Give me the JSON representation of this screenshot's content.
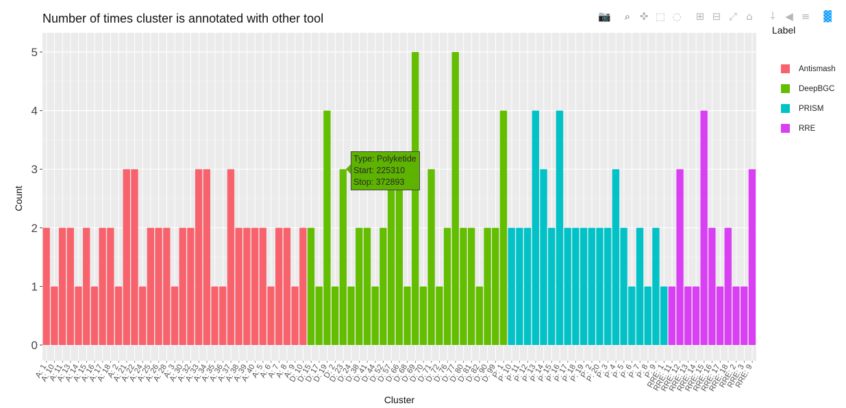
{
  "chart_data": {
    "type": "bar",
    "title": "Number of times cluster is annotated with other tool",
    "xlabel": "Cluster",
    "ylabel": "Count",
    "ylim": [
      0,
      5
    ],
    "y_ticks": [
      "0",
      "1",
      "2",
      "3",
      "4",
      "5"
    ],
    "grid": true,
    "legend_title": "Label",
    "legend_position": "right",
    "series": [
      {
        "name": "Antismash",
        "color": "#f8626c",
        "categories": [
          "A: 1",
          "A: 10",
          "A: 11",
          "A: 13",
          "A: 14",
          "A: 15",
          "A: 16",
          "A: 17",
          "A: 18",
          "A: 2",
          "A: 21",
          "A: 22",
          "A: 24",
          "A: 25",
          "A: 26",
          "A: 28",
          "A: 3",
          "A: 30",
          "A: 32",
          "A: 33",
          "A: 34",
          "A: 35",
          "A: 36",
          "A: 37",
          "A: 38",
          "A: 39",
          "A: 40",
          "A: 5",
          "A: 6",
          "A: 7",
          "A: 8",
          "A: 9"
        ],
        "values": [
          2,
          1,
          2,
          2,
          1,
          2,
          1,
          2,
          2,
          1,
          3,
          3,
          1,
          2,
          2,
          2,
          1,
          2,
          2,
          3,
          3,
          1,
          1,
          3,
          2,
          2,
          2,
          2,
          1,
          2,
          2,
          1
        ]
      },
      {
        "name": "DeepBGC",
        "color": "#63bd00",
        "categories": [
          "A: 9",
          "D: 10",
          "D: 15",
          "D: 17",
          "D: 19",
          "D: 2",
          "D: 23",
          "D: 24",
          "D: 38",
          "D: 41",
          "D: 44",
          "D: 52",
          "D: 57",
          "D: 66",
          "D: 68",
          "D: 69",
          "D: 70",
          "D: 71",
          "D: 72",
          "D: 76",
          "D: 77",
          "D: 80",
          "D: 81",
          "D: 82",
          "D: 90",
          "D: 99"
        ],
        "values": [
          2,
          2,
          1,
          4,
          1,
          3,
          1,
          2,
          2,
          1,
          2,
          3,
          3,
          1,
          5,
          1,
          3,
          1,
          2,
          5,
          2,
          2,
          1,
          2,
          2,
          4
        ]
      },
      {
        "name": "PRISM",
        "color": "#00c2c7",
        "categories": [
          "P: 1",
          "P: 10",
          "P: 11",
          "P: 12",
          "P: 13",
          "P: 14",
          "P: 15",
          "P: 16",
          "P: 17",
          "P: 18",
          "P: 19",
          "P: 2",
          "P: 20",
          "P: 3",
          "P: 4",
          "P: 5",
          "P: 6",
          "P: 7",
          "P: 8",
          "P: 9"
        ],
        "values": [
          2,
          2,
          2,
          4,
          3,
          2,
          4,
          2,
          2,
          2,
          2,
          2,
          2,
          3,
          2,
          1,
          2,
          1,
          2,
          1
        ]
      },
      {
        "name": "RRE",
        "color": "#d93ff3",
        "categories": [
          "RRE: 1",
          "RRE: 11",
          "RRE: 12",
          "RRE: 13",
          "RRE: 14",
          "RRE: 15",
          "RRE: 16",
          "RRE: 17",
          "RRE: 18",
          "RRE: 2",
          "RRE: 3",
          "RRE: 9"
        ],
        "values": [
          1,
          3,
          1,
          1,
          4,
          2,
          1,
          2,
          1,
          1,
          3,
          1
        ]
      }
    ],
    "x_tick_labels": [
      "A: 1",
      "A: 10",
      "A: 11",
      "A: 13",
      "A: 14",
      "A: 15",
      "A: 16",
      "A: 17",
      "A: 18",
      "A: 2",
      "A: 21",
      "A: 22",
      "A: 24",
      "A: 25",
      "A: 26",
      "A: 28",
      "A: 3",
      "A: 30",
      "A: 32",
      "A: 33",
      "A: 34",
      "A: 35",
      "A: 36",
      "A: 37",
      "A: 38",
      "A: 39",
      "A: 40",
      "A: 5",
      "A: 6",
      "A: 7",
      "A: 8",
      "A: 9",
      "D: 10",
      "D: 15",
      "D: 17",
      "D: 19",
      "D: 2",
      "D: 23",
      "D: 24",
      "D: 38",
      "D: 41",
      "D: 44",
      "D: 52",
      "D: 57",
      "D: 66",
      "D: 68",
      "D: 69",
      "D: 70",
      "D: 71",
      "D: 72",
      "D: 76",
      "D: 77",
      "D: 80",
      "D: 81",
      "D: 82",
      "D: 90",
      "D: 99",
      "P: 1",
      "P: 10",
      "P: 11",
      "P: 12",
      "P: 13",
      "P: 14",
      "P: 15",
      "P: 16",
      "P: 17",
      "P: 18",
      "P: 19",
      "P: 2",
      "P: 20",
      "P: 3",
      "P: 4",
      "P: 5",
      "P: 6",
      "P: 7",
      "P: 8",
      "P: 9",
      "RRE: 1",
      "RRE: 11",
      "RRE: 12",
      "RRE: 13",
      "RRE: 14",
      "RRE: 15",
      "RRE: 16",
      "RRE: 17",
      "RRE: 18",
      "RRE: 2",
      "RRE: 3",
      "RRE: 9"
    ],
    "bars": [
      {
        "label": "Antismash",
        "value": 2
      },
      {
        "label": "Antismash",
        "value": 1
      },
      {
        "label": "Antismash",
        "value": 2
      },
      {
        "label": "Antismash",
        "value": 2
      },
      {
        "label": "Antismash",
        "value": 1
      },
      {
        "label": "Antismash",
        "value": 2
      },
      {
        "label": "Antismash",
        "value": 1
      },
      {
        "label": "Antismash",
        "value": 2
      },
      {
        "label": "Antismash",
        "value": 2
      },
      {
        "label": "Antismash",
        "value": 1
      },
      {
        "label": "Antismash",
        "value": 3
      },
      {
        "label": "Antismash",
        "value": 3
      },
      {
        "label": "Antismash",
        "value": 1
      },
      {
        "label": "Antismash",
        "value": 2
      },
      {
        "label": "Antismash",
        "value": 2
      },
      {
        "label": "Antismash",
        "value": 2
      },
      {
        "label": "Antismash",
        "value": 1
      },
      {
        "label": "Antismash",
        "value": 2
      },
      {
        "label": "Antismash",
        "value": 2
      },
      {
        "label": "Antismash",
        "value": 3
      },
      {
        "label": "Antismash",
        "value": 3
      },
      {
        "label": "Antismash",
        "value": 1
      },
      {
        "label": "Antismash",
        "value": 1
      },
      {
        "label": "Antismash",
        "value": 3
      },
      {
        "label": "Antismash",
        "value": 2
      },
      {
        "label": "Antismash",
        "value": 2
      },
      {
        "label": "Antismash",
        "value": 2
      },
      {
        "label": "Antismash",
        "value": 2
      },
      {
        "label": "Antismash",
        "value": 1
      },
      {
        "label": "Antismash",
        "value": 2
      },
      {
        "label": "Antismash",
        "value": 2
      },
      {
        "label": "Antismash",
        "value": 1
      },
      {
        "label": "Antismash",
        "value": 2
      },
      {
        "label": "DeepBGC",
        "value": 2
      },
      {
        "label": "DeepBGC",
        "value": 1
      },
      {
        "label": "DeepBGC",
        "value": 4
      },
      {
        "label": "DeepBGC",
        "value": 1
      },
      {
        "label": "DeepBGC",
        "value": 3
      },
      {
        "label": "DeepBGC",
        "value": 1
      },
      {
        "label": "DeepBGC",
        "value": 2
      },
      {
        "label": "DeepBGC",
        "value": 2
      },
      {
        "label": "DeepBGC",
        "value": 1
      },
      {
        "label": "DeepBGC",
        "value": 2
      },
      {
        "label": "DeepBGC",
        "value": 3
      },
      {
        "label": "DeepBGC",
        "value": 3
      },
      {
        "label": "DeepBGC",
        "value": 1
      },
      {
        "label": "DeepBGC",
        "value": 5
      },
      {
        "label": "DeepBGC",
        "value": 1
      },
      {
        "label": "DeepBGC",
        "value": 3
      },
      {
        "label": "DeepBGC",
        "value": 1
      },
      {
        "label": "DeepBGC",
        "value": 2
      },
      {
        "label": "DeepBGC",
        "value": 5
      },
      {
        "label": "DeepBGC",
        "value": 2
      },
      {
        "label": "DeepBGC",
        "value": 2
      },
      {
        "label": "DeepBGC",
        "value": 1
      },
      {
        "label": "DeepBGC",
        "value": 2
      },
      {
        "label": "DeepBGC",
        "value": 2
      },
      {
        "label": "DeepBGC",
        "value": 4
      },
      {
        "label": "PRISM",
        "value": 2
      },
      {
        "label": "PRISM",
        "value": 2
      },
      {
        "label": "PRISM",
        "value": 2
      },
      {
        "label": "PRISM",
        "value": 4
      },
      {
        "label": "PRISM",
        "value": 3
      },
      {
        "label": "PRISM",
        "value": 2
      },
      {
        "label": "PRISM",
        "value": 4
      },
      {
        "label": "PRISM",
        "value": 2
      },
      {
        "label": "PRISM",
        "value": 2
      },
      {
        "label": "PRISM",
        "value": 2
      },
      {
        "label": "PRISM",
        "value": 2
      },
      {
        "label": "PRISM",
        "value": 2
      },
      {
        "label": "PRISM",
        "value": 2
      },
      {
        "label": "PRISM",
        "value": 3
      },
      {
        "label": "PRISM",
        "value": 2
      },
      {
        "label": "PRISM",
        "value": 1
      },
      {
        "label": "PRISM",
        "value": 2
      },
      {
        "label": "PRISM",
        "value": 1
      },
      {
        "label": "PRISM",
        "value": 2
      },
      {
        "label": "PRISM",
        "value": 1
      },
      {
        "label": "RRE",
        "value": 1
      },
      {
        "label": "RRE",
        "value": 3
      },
      {
        "label": "RRE",
        "value": 1
      },
      {
        "label": "RRE",
        "value": 1
      },
      {
        "label": "RRE",
        "value": 4
      },
      {
        "label": "RRE",
        "value": 2
      },
      {
        "label": "RRE",
        "value": 1
      },
      {
        "label": "RRE",
        "value": 2
      },
      {
        "label": "RRE",
        "value": 1
      },
      {
        "label": "RRE",
        "value": 1
      },
      {
        "label": "RRE",
        "value": 3
      }
    ],
    "hover": {
      "line1": "Type: Polyketide",
      "line2": "Start:  225310",
      "line3": "Stop:  372893",
      "color": "#5db300"
    }
  },
  "legend": {
    "title": "Label",
    "items": [
      {
        "name": "Antismash",
        "color": "#f8626c"
      },
      {
        "name": "DeepBGC",
        "color": "#63bd00"
      },
      {
        "name": "PRISM",
        "color": "#00c2c7"
      },
      {
        "name": "RRE",
        "color": "#d93ff3"
      }
    ]
  },
  "modebar": {
    "buttons": [
      "camera-icon",
      "zoom-icon",
      "pan-icon",
      "box-select-icon",
      "lasso-icon",
      "zoom-in-icon",
      "zoom-out-icon",
      "autoscale-icon",
      "home-icon",
      "spike-lines-icon",
      "hover-closest-icon",
      "hover-compare-icon",
      "plotly-logo-icon"
    ]
  }
}
